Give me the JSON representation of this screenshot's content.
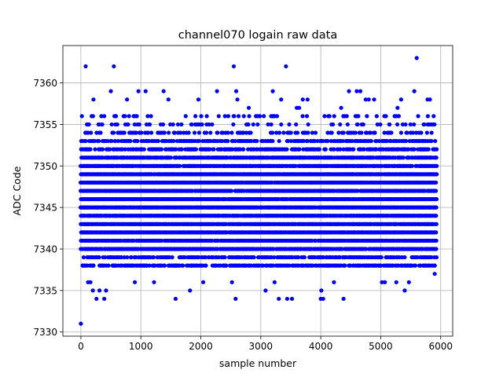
{
  "chart_data": {
    "type": "scatter",
    "title": "channel070 logain raw data",
    "xlabel": "sample number",
    "ylabel": "ADC Code",
    "xlim": [
      -300,
      6200
    ],
    "ylim": [
      7329.5,
      7364.5
    ],
    "xticks": [
      0,
      1000,
      2000,
      3000,
      4000,
      5000,
      6000
    ],
    "yticks": [
      7330,
      7335,
      7340,
      7345,
      7350,
      7355,
      7360
    ],
    "grid": true,
    "marker_color": "#0000ff",
    "x_range": [
      0,
      5930
    ],
    "dense_band": [
      7338,
      7356
    ],
    "series": [
      {
        "points": [
          [
            0,
            7331
          ],
          [
            80,
            7362
          ],
          [
            550,
            7362
          ],
          [
            2550,
            7362
          ],
          [
            3420,
            7362
          ],
          [
            5600,
            7363
          ],
          [
            120,
            7336
          ],
          [
            160,
            7336
          ],
          [
            200,
            7335
          ],
          [
            260,
            7334
          ],
          [
            310,
            7335
          ],
          [
            390,
            7334
          ],
          [
            420,
            7335
          ],
          [
            900,
            7336
          ],
          [
            1220,
            7336
          ],
          [
            1580,
            7334
          ],
          [
            1820,
            7335
          ],
          [
            2040,
            7336
          ],
          [
            2520,
            7336
          ],
          [
            2580,
            7334
          ],
          [
            3080,
            7335
          ],
          [
            3230,
            7336
          ],
          [
            3300,
            7334
          ],
          [
            3440,
            7334
          ],
          [
            3520,
            7334
          ],
          [
            4000,
            7334
          ],
          [
            4040,
            7334
          ],
          [
            4010,
            7335
          ],
          [
            4220,
            7336
          ],
          [
            4380,
            7334
          ],
          [
            5020,
            7336
          ],
          [
            5070,
            7336
          ],
          [
            5260,
            7336
          ],
          [
            5400,
            7335
          ],
          [
            5470,
            7336
          ],
          [
            5900,
            7337
          ],
          [
            210,
            7358
          ],
          [
            500,
            7359
          ],
          [
            770,
            7358
          ],
          [
            960,
            7359
          ],
          [
            1080,
            7359
          ],
          [
            1380,
            7359
          ],
          [
            1460,
            7358
          ],
          [
            1960,
            7358
          ],
          [
            2270,
            7359
          ],
          [
            2610,
            7358
          ],
          [
            2590,
            7359
          ],
          [
            2800,
            7357
          ],
          [
            3200,
            7359
          ],
          [
            3340,
            7358
          ],
          [
            3600,
            7357
          ],
          [
            3640,
            7357
          ],
          [
            3700,
            7358
          ],
          [
            3780,
            7358
          ],
          [
            4340,
            7357
          ],
          [
            4470,
            7359
          ],
          [
            4600,
            7359
          ],
          [
            4660,
            7359
          ],
          [
            4750,
            7358
          ],
          [
            4800,
            7358
          ],
          [
            4890,
            7358
          ],
          [
            5280,
            7357
          ],
          [
            5340,
            7358
          ],
          [
            5560,
            7359
          ],
          [
            5780,
            7358
          ],
          [
            5820,
            7358
          ]
        ]
      }
    ]
  }
}
